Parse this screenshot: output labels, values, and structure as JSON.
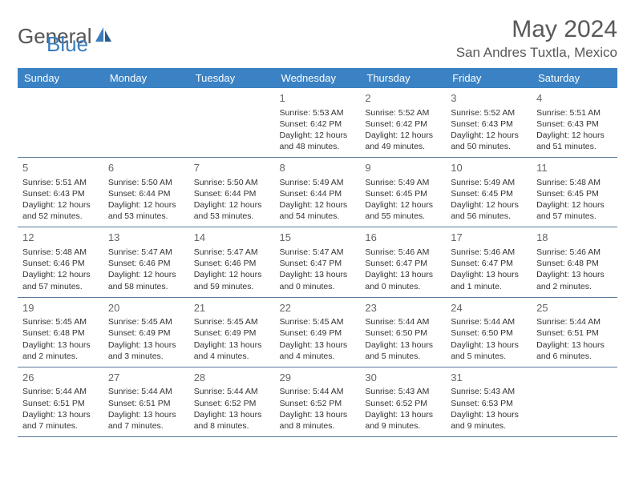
{
  "logo": {
    "text1": "General",
    "text2": "Blue"
  },
  "title": "May 2024",
  "location": "San Andres Tuxtla, Mexico",
  "colors": {
    "header_bg": "#3b82c4",
    "header_text": "#ffffff",
    "border": "#5a7a9a",
    "title_text": "#595959",
    "body_text": "#333333",
    "daynum_text": "#666666",
    "logo_gray": "#555555",
    "logo_blue": "#3b7dbf"
  },
  "typography": {
    "title_fontsize": 30,
    "location_fontsize": 17,
    "header_fontsize": 13,
    "daynum_fontsize": 13,
    "cell_fontsize": 10.5
  },
  "daynames": [
    "Sunday",
    "Monday",
    "Tuesday",
    "Wednesday",
    "Thursday",
    "Friday",
    "Saturday"
  ],
  "weeks": [
    [
      null,
      null,
      null,
      {
        "d": "1",
        "sr": "5:53 AM",
        "ss": "6:42 PM",
        "dl": "12 hours and 48 minutes."
      },
      {
        "d": "2",
        "sr": "5:52 AM",
        "ss": "6:42 PM",
        "dl": "12 hours and 49 minutes."
      },
      {
        "d": "3",
        "sr": "5:52 AM",
        "ss": "6:43 PM",
        "dl": "12 hours and 50 minutes."
      },
      {
        "d": "4",
        "sr": "5:51 AM",
        "ss": "6:43 PM",
        "dl": "12 hours and 51 minutes."
      }
    ],
    [
      {
        "d": "5",
        "sr": "5:51 AM",
        "ss": "6:43 PM",
        "dl": "12 hours and 52 minutes."
      },
      {
        "d": "6",
        "sr": "5:50 AM",
        "ss": "6:44 PM",
        "dl": "12 hours and 53 minutes."
      },
      {
        "d": "7",
        "sr": "5:50 AM",
        "ss": "6:44 PM",
        "dl": "12 hours and 53 minutes."
      },
      {
        "d": "8",
        "sr": "5:49 AM",
        "ss": "6:44 PM",
        "dl": "12 hours and 54 minutes."
      },
      {
        "d": "9",
        "sr": "5:49 AM",
        "ss": "6:45 PM",
        "dl": "12 hours and 55 minutes."
      },
      {
        "d": "10",
        "sr": "5:49 AM",
        "ss": "6:45 PM",
        "dl": "12 hours and 56 minutes."
      },
      {
        "d": "11",
        "sr": "5:48 AM",
        "ss": "6:45 PM",
        "dl": "12 hours and 57 minutes."
      }
    ],
    [
      {
        "d": "12",
        "sr": "5:48 AM",
        "ss": "6:46 PM",
        "dl": "12 hours and 57 minutes."
      },
      {
        "d": "13",
        "sr": "5:47 AM",
        "ss": "6:46 PM",
        "dl": "12 hours and 58 minutes."
      },
      {
        "d": "14",
        "sr": "5:47 AM",
        "ss": "6:46 PM",
        "dl": "12 hours and 59 minutes."
      },
      {
        "d": "15",
        "sr": "5:47 AM",
        "ss": "6:47 PM",
        "dl": "13 hours and 0 minutes."
      },
      {
        "d": "16",
        "sr": "5:46 AM",
        "ss": "6:47 PM",
        "dl": "13 hours and 0 minutes."
      },
      {
        "d": "17",
        "sr": "5:46 AM",
        "ss": "6:47 PM",
        "dl": "13 hours and 1 minute."
      },
      {
        "d": "18",
        "sr": "5:46 AM",
        "ss": "6:48 PM",
        "dl": "13 hours and 2 minutes."
      }
    ],
    [
      {
        "d": "19",
        "sr": "5:45 AM",
        "ss": "6:48 PM",
        "dl": "13 hours and 2 minutes."
      },
      {
        "d": "20",
        "sr": "5:45 AM",
        "ss": "6:49 PM",
        "dl": "13 hours and 3 minutes."
      },
      {
        "d": "21",
        "sr": "5:45 AM",
        "ss": "6:49 PM",
        "dl": "13 hours and 4 minutes."
      },
      {
        "d": "22",
        "sr": "5:45 AM",
        "ss": "6:49 PM",
        "dl": "13 hours and 4 minutes."
      },
      {
        "d": "23",
        "sr": "5:44 AM",
        "ss": "6:50 PM",
        "dl": "13 hours and 5 minutes."
      },
      {
        "d": "24",
        "sr": "5:44 AM",
        "ss": "6:50 PM",
        "dl": "13 hours and 5 minutes."
      },
      {
        "d": "25",
        "sr": "5:44 AM",
        "ss": "6:51 PM",
        "dl": "13 hours and 6 minutes."
      }
    ],
    [
      {
        "d": "26",
        "sr": "5:44 AM",
        "ss": "6:51 PM",
        "dl": "13 hours and 7 minutes."
      },
      {
        "d": "27",
        "sr": "5:44 AM",
        "ss": "6:51 PM",
        "dl": "13 hours and 7 minutes."
      },
      {
        "d": "28",
        "sr": "5:44 AM",
        "ss": "6:52 PM",
        "dl": "13 hours and 8 minutes."
      },
      {
        "d": "29",
        "sr": "5:44 AM",
        "ss": "6:52 PM",
        "dl": "13 hours and 8 minutes."
      },
      {
        "d": "30",
        "sr": "5:43 AM",
        "ss": "6:52 PM",
        "dl": "13 hours and 9 minutes."
      },
      {
        "d": "31",
        "sr": "5:43 AM",
        "ss": "6:53 PM",
        "dl": "13 hours and 9 minutes."
      },
      null
    ]
  ],
  "labels": {
    "sunrise": "Sunrise:",
    "sunset": "Sunset:",
    "daylight": "Daylight:"
  }
}
